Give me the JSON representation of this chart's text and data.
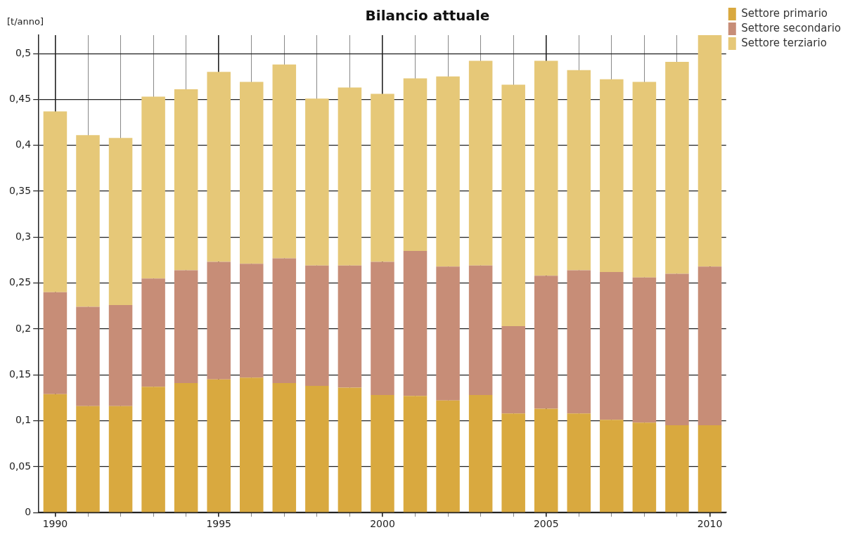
{
  "chart_data": {
    "type": "bar",
    "title": "Bilancio attuale",
    "ylabel": "[t/anno]",
    "categories": [
      "1990",
      null,
      null,
      null,
      null,
      "1995",
      null,
      null,
      null,
      null,
      "2000",
      null,
      null,
      null,
      null,
      "2005",
      null,
      null,
      null,
      null,
      "2010"
    ],
    "series": [
      {
        "name": "Settore primario",
        "color": "#d9a93f",
        "values": [
          0.129,
          0.116,
          0.116,
          0.137,
          0.141,
          0.145,
          0.147,
          0.141,
          0.138,
          0.136,
          0.128,
          0.127,
          0.122,
          0.128,
          0.108,
          0.113,
          0.108,
          0.101,
          0.098,
          0.095,
          0.095
        ]
      },
      {
        "name": "Settore secondario",
        "color": "#c78d77",
        "values": [
          0.111,
          0.108,
          0.11,
          0.118,
          0.123,
          0.128,
          0.124,
          0.136,
          0.131,
          0.133,
          0.145,
          0.158,
          0.146,
          0.141,
          0.095,
          0.145,
          0.156,
          0.161,
          0.158,
          0.165,
          0.173
        ]
      },
      {
        "name": "Settore terziario",
        "color": "#e6c878",
        "values": [
          0.197,
          0.187,
          0.182,
          0.198,
          0.197,
          0.207,
          0.198,
          0.211,
          0.182,
          0.194,
          0.183,
          0.188,
          0.207,
          0.223,
          0.263,
          0.234,
          0.218,
          0.21,
          0.213,
          0.231,
          0.252
        ]
      }
    ],
    "stacked": true,
    "ylim": [
      0,
      0.52
    ],
    "yticks": [
      {
        "value": 0,
        "label": "0"
      },
      {
        "value": 0.05,
        "label": "0,05"
      },
      {
        "value": 0.1,
        "label": "0,1"
      },
      {
        "value": 0.15,
        "label": "0,15"
      },
      {
        "value": 0.2,
        "label": "0,2"
      },
      {
        "value": 0.25,
        "label": "0,25"
      },
      {
        "value": 0.3,
        "label": "0,3"
      },
      {
        "value": 0.35,
        "label": "0,35"
      },
      {
        "value": 0.4,
        "label": "0,4"
      },
      {
        "value": 0.45,
        "label": "0,45"
      },
      {
        "value": 0.5,
        "label": "0,5"
      }
    ],
    "grid": true,
    "legend": "top right"
  }
}
